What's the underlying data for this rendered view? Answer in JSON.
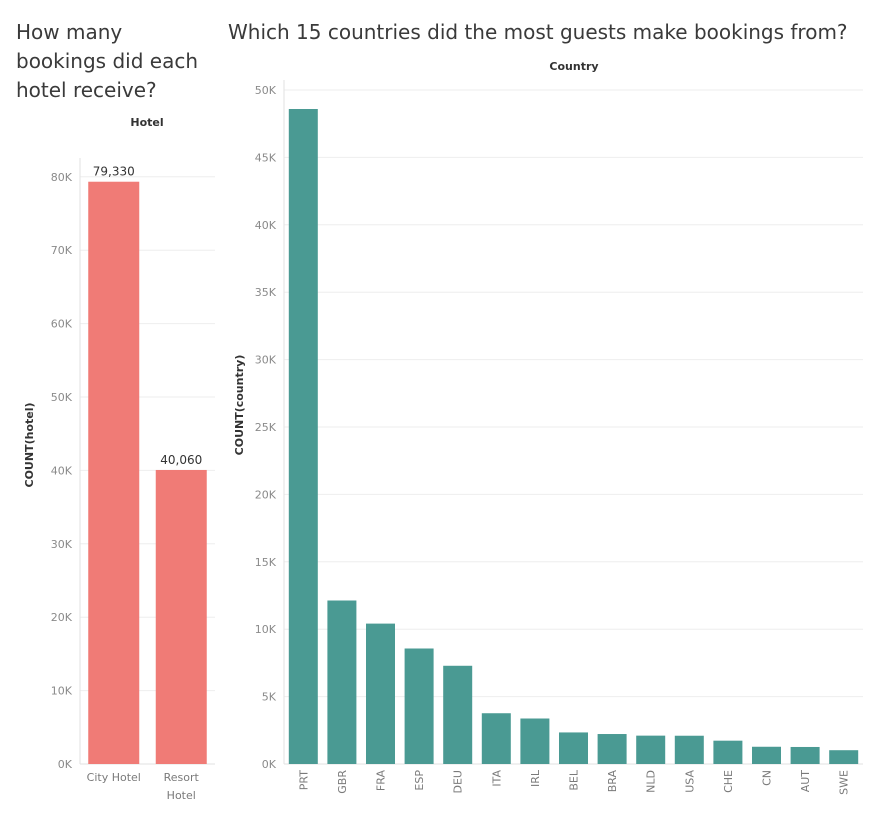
{
  "left_title": "How many bookings did each hotel receive?",
  "right_title": "Which 15 countries did the most guests make bookings from?",
  "chart_data": [
    {
      "type": "bar",
      "header": "Hotel",
      "ylabel": "COUNT(hotel)",
      "categories": [
        "City Hotel",
        "Resort Hotel"
      ],
      "values": [
        79330,
        40060
      ],
      "data_labels": [
        "79,330",
        "40,060"
      ],
      "ylim": [
        0,
        85000
      ],
      "yticks": [
        0,
        10000,
        20000,
        30000,
        40000,
        50000,
        60000,
        70000,
        80000
      ],
      "ytick_labels": [
        "0K",
        "10K",
        "20K",
        "30K",
        "40K",
        "50K",
        "60K",
        "70K",
        "80K"
      ],
      "grid": true,
      "color": "#f07b76"
    },
    {
      "type": "bar",
      "header": "Country",
      "ylabel": "COUNT(country)",
      "categories": [
        "PRT",
        "GBR",
        "FRA",
        "ESP",
        "DEU",
        "ITA",
        "IRL",
        "BEL",
        "BRA",
        "NLD",
        "USA",
        "CHE",
        "CN",
        "AUT",
        "SWE"
      ],
      "values": [
        48590,
        12129,
        10415,
        8568,
        7287,
        3766,
        3375,
        2342,
        2224,
        2104,
        2097,
        1730,
        1279,
        1263,
        1024
      ],
      "ylim": [
        0,
        50000
      ],
      "yticks": [
        0,
        5000,
        10000,
        15000,
        20000,
        25000,
        30000,
        35000,
        40000,
        45000,
        50000
      ],
      "ytick_labels": [
        "0K",
        "5K",
        "10K",
        "15K",
        "20K",
        "25K",
        "30K",
        "35K",
        "40K",
        "45K",
        "50K"
      ],
      "grid": true,
      "color": "#4a9a93"
    }
  ]
}
